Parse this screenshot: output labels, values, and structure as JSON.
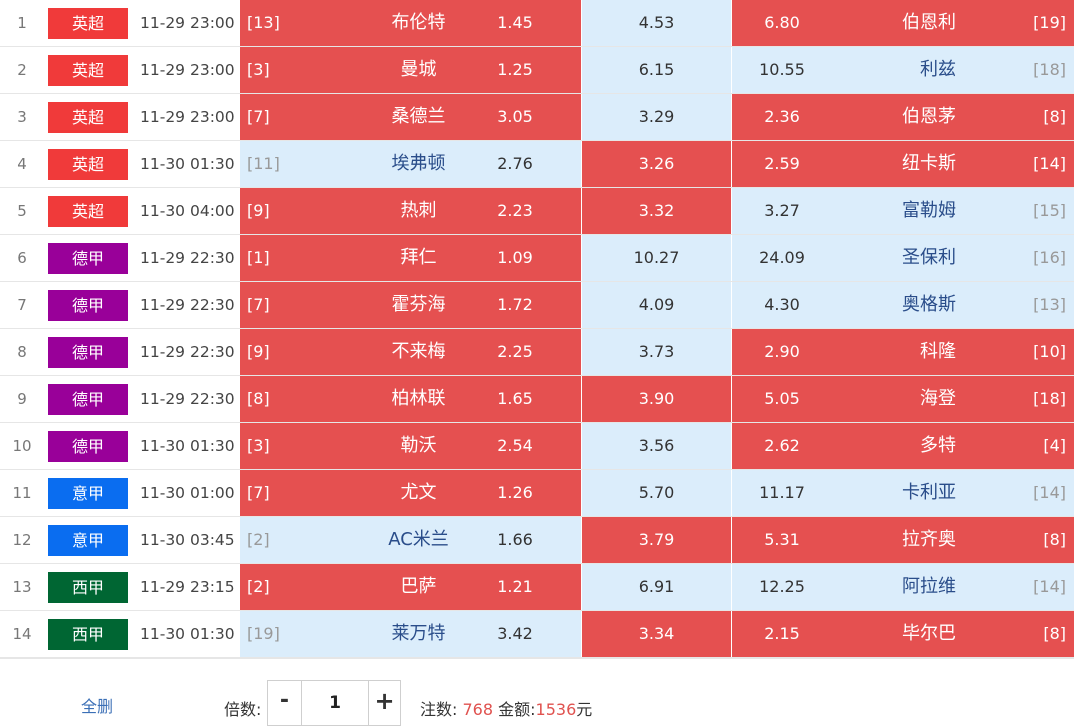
{
  "matches": [
    {
      "idx": "1",
      "league": "英超",
      "league_color": "#f03a3a",
      "time": "11-29 23:00",
      "home_rank": "[13]",
      "home": "布伦特",
      "home_odds": "1.45",
      "draw_odds": "4.53",
      "away_odds": "6.80",
      "away": "伯恩利",
      "away_rank": "[19]",
      "home_sel": true,
      "draw_sel": false,
      "away_sel": true
    },
    {
      "idx": "2",
      "league": "英超",
      "league_color": "#f03a3a",
      "time": "11-29 23:00",
      "home_rank": "[3]",
      "home": "曼城",
      "home_odds": "1.25",
      "draw_odds": "6.15",
      "away_odds": "10.55",
      "away": "利兹",
      "away_rank": "[18]",
      "home_sel": true,
      "draw_sel": false,
      "away_sel": false
    },
    {
      "idx": "3",
      "league": "英超",
      "league_color": "#f03a3a",
      "time": "11-29 23:00",
      "home_rank": "[7]",
      "home": "桑德兰",
      "home_odds": "3.05",
      "draw_odds": "3.29",
      "away_odds": "2.36",
      "away": "伯恩茅",
      "away_rank": "[8]",
      "home_sel": true,
      "draw_sel": false,
      "away_sel": true
    },
    {
      "idx": "4",
      "league": "英超",
      "league_color": "#f03a3a",
      "time": "11-30 01:30",
      "home_rank": "[11]",
      "home": "埃弗顿",
      "home_odds": "2.76",
      "draw_odds": "3.26",
      "away_odds": "2.59",
      "away": "纽卡斯",
      "away_rank": "[14]",
      "home_sel": false,
      "draw_sel": true,
      "away_sel": true
    },
    {
      "idx": "5",
      "league": "英超",
      "league_color": "#f03a3a",
      "time": "11-30 04:00",
      "home_rank": "[9]",
      "home": "热刺",
      "home_odds": "2.23",
      "draw_odds": "3.32",
      "away_odds": "3.27",
      "away": "富勒姆",
      "away_rank": "[15]",
      "home_sel": true,
      "draw_sel": true,
      "away_sel": false
    },
    {
      "idx": "6",
      "league": "德甲",
      "league_color": "#990099",
      "time": "11-29 22:30",
      "home_rank": "[1]",
      "home": "拜仁",
      "home_odds": "1.09",
      "draw_odds": "10.27",
      "away_odds": "24.09",
      "away": "圣保利",
      "away_rank": "[16]",
      "home_sel": true,
      "draw_sel": false,
      "away_sel": false
    },
    {
      "idx": "7",
      "league": "德甲",
      "league_color": "#990099",
      "time": "11-29 22:30",
      "home_rank": "[7]",
      "home": "霍芬海",
      "home_odds": "1.72",
      "draw_odds": "4.09",
      "away_odds": "4.30",
      "away": "奥格斯",
      "away_rank": "[13]",
      "home_sel": true,
      "draw_sel": false,
      "away_sel": false
    },
    {
      "idx": "8",
      "league": "德甲",
      "league_color": "#990099",
      "time": "11-29 22:30",
      "home_rank": "[9]",
      "home": "不来梅",
      "home_odds": "2.25",
      "draw_odds": "3.73",
      "away_odds": "2.90",
      "away": "科隆",
      "away_rank": "[10]",
      "home_sel": true,
      "draw_sel": false,
      "away_sel": true
    },
    {
      "idx": "9",
      "league": "德甲",
      "league_color": "#990099",
      "time": "11-29 22:30",
      "home_rank": "[8]",
      "home": "柏林联",
      "home_odds": "1.65",
      "draw_odds": "3.90",
      "away_odds": "5.05",
      "away": "海登",
      "away_rank": "[18]",
      "home_sel": true,
      "draw_sel": true,
      "away_sel": true
    },
    {
      "idx": "10",
      "league": "德甲",
      "league_color": "#990099",
      "time": "11-30 01:30",
      "home_rank": "[3]",
      "home": "勒沃",
      "home_odds": "2.54",
      "draw_odds": "3.56",
      "away_odds": "2.62",
      "away": "多特",
      "away_rank": "[4]",
      "home_sel": true,
      "draw_sel": false,
      "away_sel": true
    },
    {
      "idx": "11",
      "league": "意甲",
      "league_color": "#0a6df0",
      "time": "11-30 01:00",
      "home_rank": "[7]",
      "home": "尤文",
      "home_odds": "1.26",
      "draw_odds": "5.70",
      "away_odds": "11.17",
      "away": "卡利亚",
      "away_rank": "[14]",
      "home_sel": true,
      "draw_sel": false,
      "away_sel": false
    },
    {
      "idx": "12",
      "league": "意甲",
      "league_color": "#0a6df0",
      "time": "11-30 03:45",
      "home_rank": "[2]",
      "home": "AC米兰",
      "home_odds": "1.66",
      "draw_odds": "3.79",
      "away_odds": "5.31",
      "away": "拉齐奥",
      "away_rank": "[8]",
      "home_sel": false,
      "draw_sel": true,
      "away_sel": true
    },
    {
      "idx": "13",
      "league": "西甲",
      "league_color": "#006633",
      "time": "11-29 23:15",
      "home_rank": "[2]",
      "home": "巴萨",
      "home_odds": "1.21",
      "draw_odds": "6.91",
      "away_odds": "12.25",
      "away": "阿拉维",
      "away_rank": "[14]",
      "home_sel": true,
      "draw_sel": false,
      "away_sel": false
    },
    {
      "idx": "14",
      "league": "西甲",
      "league_color": "#006633",
      "time": "11-30 01:30",
      "home_rank": "[19]",
      "home": "莱万特",
      "home_odds": "3.42",
      "draw_odds": "3.34",
      "away_odds": "2.15",
      "away": "毕尔巴",
      "away_rank": "[8]",
      "home_sel": false,
      "draw_sel": true,
      "away_sel": true
    }
  ],
  "footer": {
    "clear_all": "全删",
    "multiplier_label": "倍数:",
    "minus": "-",
    "multiplier_value": "1",
    "plus": "+",
    "bets_label": "注数:",
    "bets_value": "768",
    "amount_label": "金额:",
    "amount_value": "1536",
    "currency": "元"
  },
  "colors": {
    "selected": "#e55050",
    "unselected": "#dbedfb",
    "accent_number": "#e0524f",
    "link": "#3b6fb6"
  }
}
